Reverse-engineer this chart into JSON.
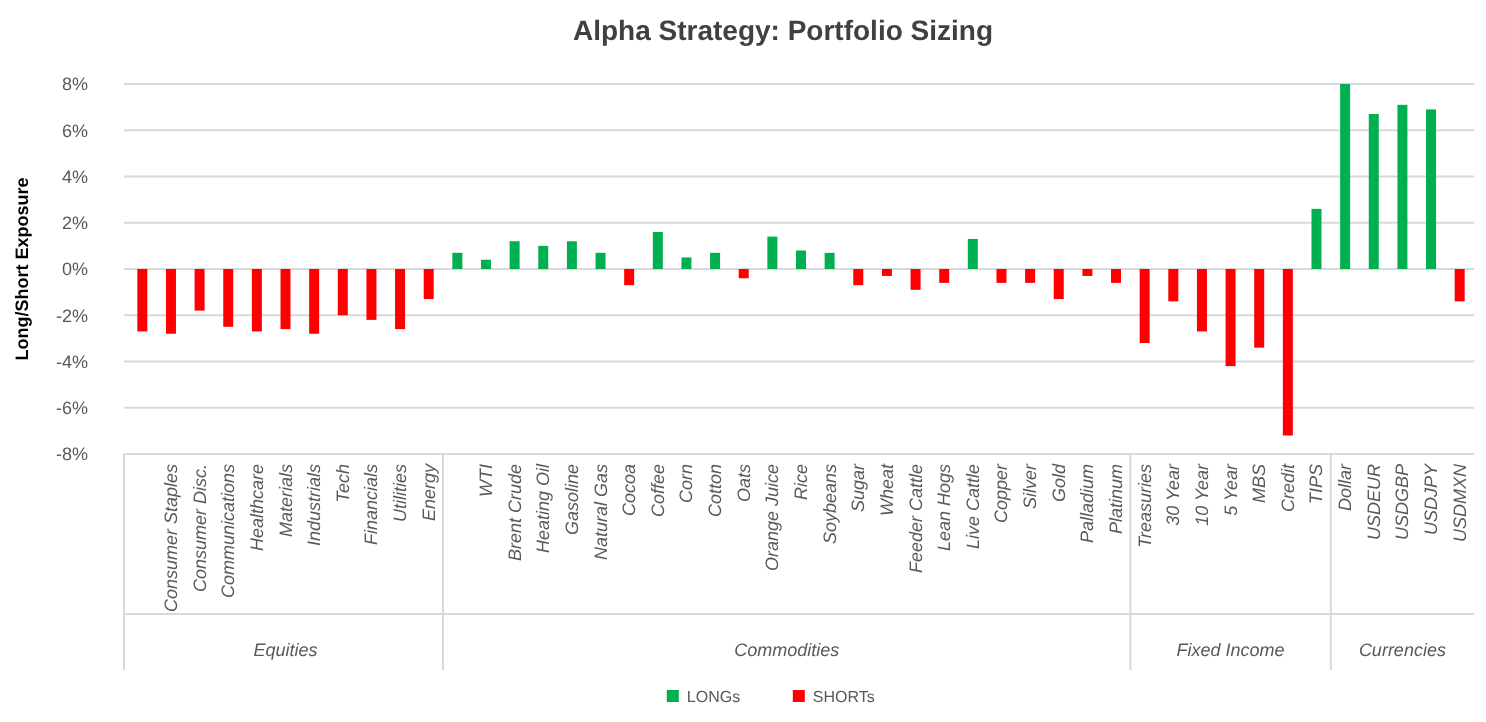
{
  "chart_data": {
    "type": "bar",
    "title": "Alpha Strategy: Portfolio Sizing",
    "ylabel": "Long/Short Exposure",
    "categories": [
      null,
      "Consumer Staples",
      "Consumer Disc.",
      "Communications",
      "Healthcare",
      "Materials",
      "Industrials",
      "Tech",
      "Financials",
      "Utilities",
      "Energy",
      null,
      "WTI",
      "Brent Crude",
      "Heating Oil",
      "Gasoline",
      "Natural Gas",
      "Cocoa",
      "Coffee",
      "Corn",
      "Cotton",
      "Oats",
      "Orange Juice",
      "Rice",
      "Soybeans",
      "Sugar",
      "Wheat",
      "Feeder Cattle",
      "Lean Hogs",
      "Live Cattle",
      "Copper",
      "Silver",
      "Gold",
      "Palladium",
      "Platinum",
      "Treasuries",
      "30 Year",
      "10 Year",
      "5 Year",
      "MBS",
      "Credit",
      "TIPS",
      "Dollar",
      "USDEUR",
      "USDGBP",
      "USDJPY",
      "USDMXN"
    ],
    "series": [
      {
        "name": "LONGs",
        "color": "#00b050",
        "values": [
          null,
          null,
          null,
          null,
          null,
          null,
          null,
          null,
          null,
          null,
          null,
          0.7,
          0.4,
          1.2,
          1.0,
          1.2,
          0.7,
          null,
          1.6,
          0.5,
          0.7,
          null,
          1.4,
          0.8,
          0.7,
          null,
          null,
          null,
          null,
          1.3,
          null,
          null,
          null,
          null,
          null,
          null,
          null,
          null,
          null,
          null,
          null,
          2.6,
          8.0,
          6.7,
          7.1,
          6.9,
          null
        ]
      },
      {
        "name": "SHORTs",
        "color": "#ff0000",
        "values": [
          -2.7,
          -2.8,
          -1.8,
          -2.5,
          -2.7,
          -2.6,
          -2.8,
          -2.0,
          -2.2,
          -2.6,
          -1.3,
          null,
          null,
          null,
          null,
          null,
          null,
          -0.7,
          null,
          null,
          null,
          -0.4,
          null,
          null,
          null,
          -0.7,
          -0.3,
          -0.9,
          -0.6,
          null,
          -0.6,
          -0.6,
          -1.3,
          -0.3,
          -0.6,
          -3.2,
          -1.4,
          -2.7,
          -4.2,
          -3.4,
          -7.2,
          null,
          null,
          null,
          null,
          null,
          -1.4
        ]
      }
    ],
    "ylim": [
      -8,
      8
    ],
    "yticks": [
      {
        "value": -8,
        "label": "-8%"
      },
      {
        "value": -6,
        "label": "-6%"
      },
      {
        "value": -4,
        "label": "-4%"
      },
      {
        "value": -2,
        "label": "-2%"
      },
      {
        "value": 0,
        "label": "0%"
      },
      {
        "value": 2,
        "label": "2%"
      },
      {
        "value": 4,
        "label": "4%"
      },
      {
        "value": 6,
        "label": "6%"
      },
      {
        "value": 8,
        "label": "8%"
      }
    ],
    "grid": "y",
    "legend": "bottom",
    "annotations": [
      "Equities",
      "Commodities",
      "Fixed Income",
      "Currencies"
    ]
  }
}
